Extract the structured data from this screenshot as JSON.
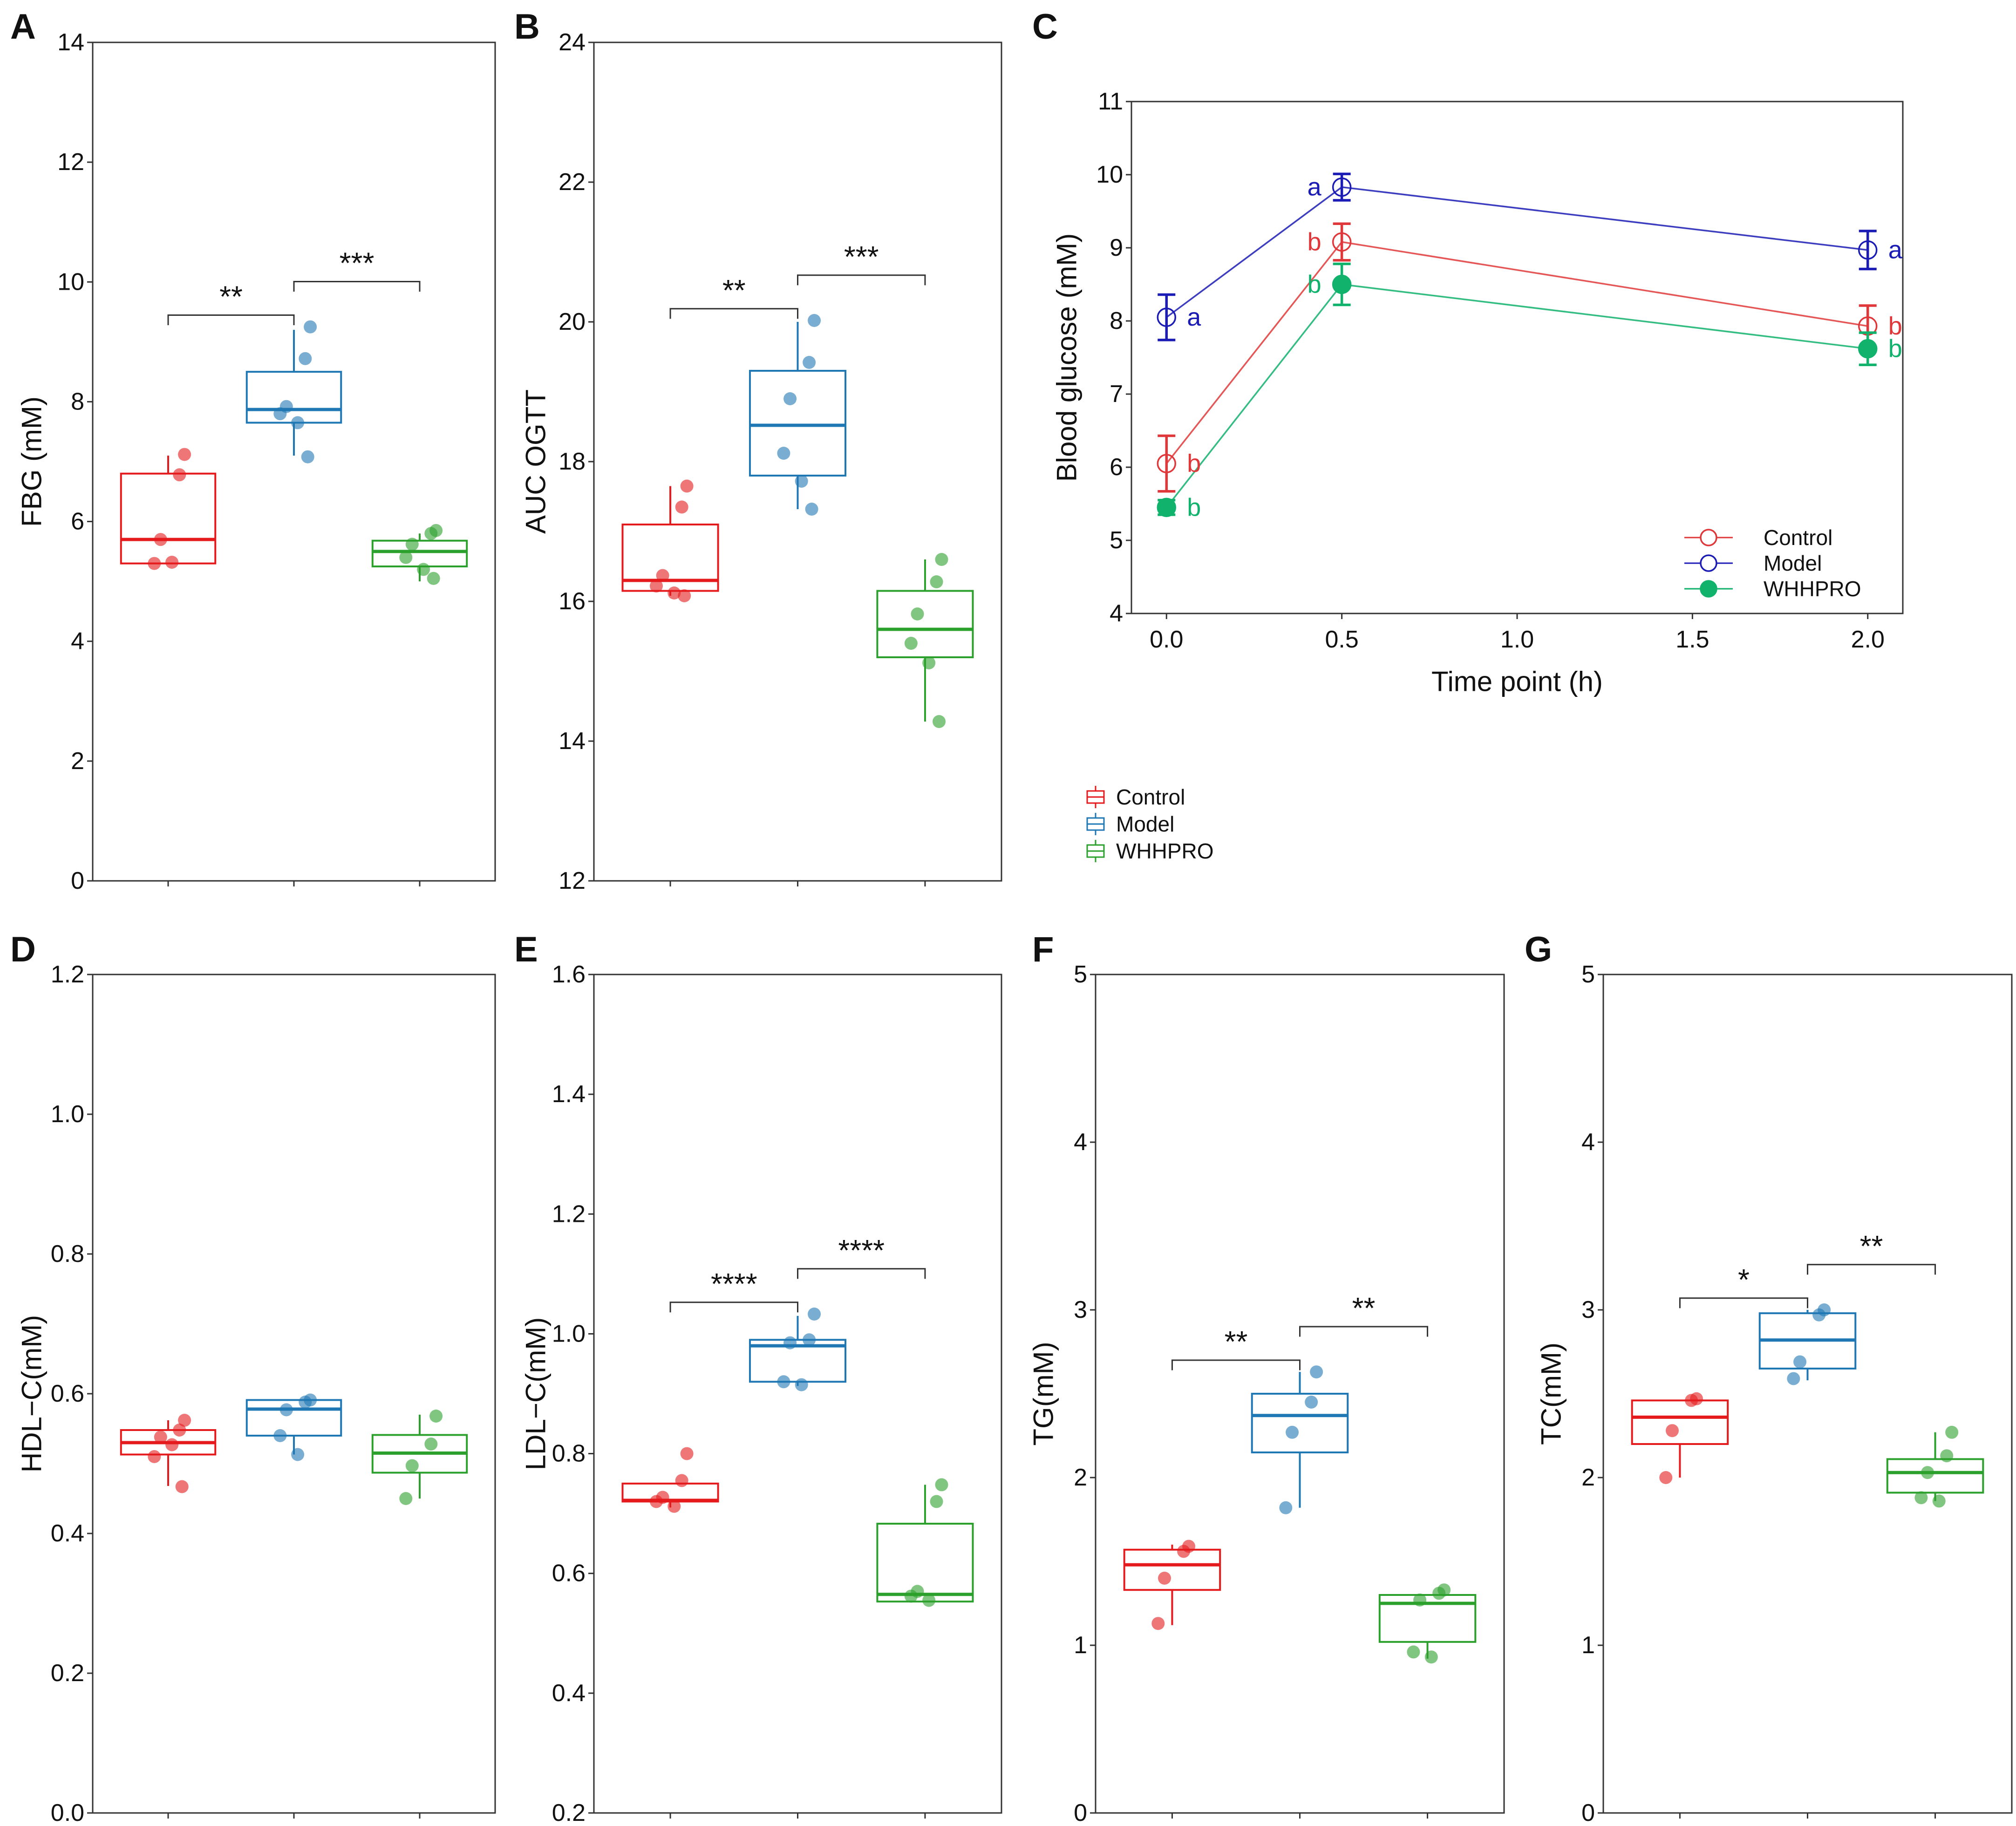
{
  "legend": {
    "items": [
      "Control",
      "Model",
      "WHHPRO"
    ]
  },
  "colors": [
    "#E41A1C",
    "#1F78B4",
    "#2CA02C"
  ],
  "chart_data": [
    {
      "panel": "A",
      "type": "box",
      "ylabel": "FBG (mM)",
      "ylim": [
        0,
        14
      ],
      "yticks": [
        "0",
        "2",
        "4",
        "6",
        "8",
        "10",
        "12",
        "14"
      ],
      "series": [
        {
          "q1": 5.3,
          "median": 5.7,
          "q3": 6.8,
          "whisker_low": 5.3,
          "whisker_high": 7.1,
          "points": [
            7.12,
            6.78,
            5.7,
            5.3,
            5.32
          ]
        },
        {
          "q1": 7.65,
          "median": 7.87,
          "q3": 8.5,
          "whisker_low": 7.1,
          "whisker_high": 9.2,
          "points": [
            9.25,
            8.72,
            7.92,
            7.8,
            7.65,
            7.08
          ]
        },
        {
          "q1": 5.25,
          "median": 5.5,
          "q3": 5.68,
          "whisker_low": 5.0,
          "whisker_high": 5.8,
          "points": [
            5.85,
            5.8,
            5.62,
            5.4,
            5.2,
            5.05
          ]
        }
      ],
      "comparisons": [
        {
          "groups": [
            1,
            2
          ],
          "label": "**"
        },
        {
          "groups": [
            2,
            3
          ],
          "label": "***"
        }
      ]
    },
    {
      "panel": "B",
      "type": "box",
      "ylabel": "AUC OGTT",
      "ylim": [
        12,
        24
      ],
      "yticks": [
        "12",
        "14",
        "16",
        "18",
        "20",
        "22",
        "24"
      ],
      "series": [
        {
          "q1": 16.15,
          "median": 16.3,
          "q3": 17.1,
          "whisker_low": 16.08,
          "whisker_high": 17.65,
          "points": [
            17.65,
            17.35,
            16.37,
            16.22,
            16.12,
            16.08
          ]
        },
        {
          "q1": 17.8,
          "median": 18.52,
          "q3": 19.3,
          "whisker_low": 17.32,
          "whisker_high": 20.0,
          "points": [
            20.02,
            19.42,
            18.9,
            18.12,
            17.72,
            17.32
          ]
        },
        {
          "q1": 15.2,
          "median": 15.6,
          "q3": 16.15,
          "whisker_low": 14.28,
          "whisker_high": 16.6,
          "points": [
            16.6,
            16.28,
            15.82,
            15.4,
            15.12,
            14.28
          ]
        }
      ],
      "comparisons": [
        {
          "groups": [
            1,
            2
          ],
          "label": "**"
        },
        {
          "groups": [
            2,
            3
          ],
          "label": "***"
        }
      ]
    },
    {
      "panel": "C",
      "type": "line",
      "xlabel": "Time point (h)",
      "ylabel": "Blood glucose (mM)",
      "xlim": [
        -0.1,
        2.1
      ],
      "ylim": [
        4,
        11
      ],
      "xticks": [
        "0.0",
        "0.5",
        "1.0",
        "1.5",
        "2.0"
      ],
      "yticks": [
        "4",
        "5",
        "6",
        "7",
        "8",
        "9",
        "10",
        "11"
      ],
      "x": [
        0,
        0.5,
        2.0
      ],
      "series": [
        {
          "name": "Control",
          "color": "#E0383A",
          "filled": false,
          "values": [
            6.05,
            9.08,
            7.93
          ],
          "error": [
            0.38,
            0.25,
            0.28
          ],
          "letters": [
            "b",
            "b",
            "b"
          ]
        },
        {
          "name": "Model",
          "color": "#1B1BB5",
          "filled": false,
          "values": [
            8.05,
            9.83,
            8.97
          ],
          "error": [
            0.31,
            0.18,
            0.26
          ],
          "letters": [
            "a",
            "a",
            "a"
          ]
        },
        {
          "name": "WHHPRO",
          "color": "#10B26C",
          "filled": true,
          "values": [
            5.45,
            8.5,
            7.62
          ],
          "error": [
            0.1,
            0.28,
            0.22
          ],
          "letters": [
            "b",
            "b",
            "b"
          ]
        }
      ]
    },
    {
      "panel": "D",
      "type": "box",
      "ylabel": "HDL−C(mM)",
      "ylim": [
        0,
        1.2
      ],
      "yticks": [
        "0.0",
        "0.2",
        "0.4",
        "0.6",
        "0.8",
        "1.0",
        "1.2"
      ],
      "series": [
        {
          "q1": 0.513,
          "median": 0.53,
          "q3": 0.548,
          "whisker_low": 0.468,
          "whisker_high": 0.562,
          "points": [
            0.562,
            0.548,
            0.538,
            0.51,
            0.527,
            0.467
          ]
        },
        {
          "q1": 0.54,
          "median": 0.578,
          "q3": 0.591,
          "whisker_low": 0.513,
          "whisker_high": 0.591,
          "points": [
            0.591,
            0.588,
            0.577,
            0.54,
            0.513
          ]
        },
        {
          "q1": 0.487,
          "median": 0.515,
          "q3": 0.541,
          "whisker_low": 0.45,
          "whisker_high": 0.57,
          "points": [
            0.568,
            0.528,
            0.497,
            0.45
          ]
        }
      ],
      "comparisons": []
    },
    {
      "panel": "E",
      "type": "box",
      "ylabel": "LDL−C(mM)",
      "ylim": [
        0.2,
        1.6
      ],
      "yticks": [
        "0.2",
        "0.4",
        "0.6",
        "0.8",
        "1.0",
        "1.2",
        "1.4",
        "1.6"
      ],
      "series": [
        {
          "q1": 0.72,
          "median": 0.722,
          "q3": 0.75,
          "whisker_low": 0.71,
          "whisker_high": 0.75,
          "points": [
            0.8,
            0.755,
            0.727,
            0.72,
            0.712
          ]
        },
        {
          "q1": 0.92,
          "median": 0.98,
          "q3": 0.99,
          "whisker_low": 0.913,
          "whisker_high": 1.03,
          "points": [
            1.033,
            0.99,
            0.985,
            0.92,
            0.915
          ]
        },
        {
          "q1": 0.553,
          "median": 0.565,
          "q3": 0.683,
          "whisker_low": 0.553,
          "whisker_high": 0.748,
          "points": [
            0.748,
            0.72,
            0.57,
            0.562,
            0.555
          ]
        }
      ],
      "comparisons": [
        {
          "groups": [
            1,
            2
          ],
          "label": "****"
        },
        {
          "groups": [
            2,
            3
          ],
          "label": "****"
        }
      ]
    },
    {
      "panel": "F",
      "type": "box",
      "ylabel": "TG(mM)",
      "ylim": [
        0,
        5
      ],
      "yticks": [
        "0",
        "1",
        "2",
        "3",
        "4",
        "5"
      ],
      "series": [
        {
          "q1": 1.33,
          "median": 1.48,
          "q3": 1.57,
          "whisker_low": 1.12,
          "whisker_high": 1.6,
          "points": [
            1.59,
            1.56,
            1.4,
            1.13
          ]
        },
        {
          "q1": 2.15,
          "median": 2.37,
          "q3": 2.5,
          "whisker_low": 1.82,
          "whisker_high": 2.63,
          "points": [
            2.63,
            2.45,
            2.27,
            1.82
          ]
        },
        {
          "q1": 1.02,
          "median": 1.25,
          "q3": 1.3,
          "whisker_low": 0.92,
          "whisker_high": 1.3,
          "points": [
            1.33,
            1.31,
            1.27,
            0.96,
            0.93
          ]
        }
      ],
      "comparisons": [
        {
          "groups": [
            1,
            2
          ],
          "label": "**"
        },
        {
          "groups": [
            2,
            3
          ],
          "label": "**"
        }
      ]
    },
    {
      "panel": "G",
      "type": "box",
      "ylabel": "TC(mM)",
      "ylim": [
        0,
        5
      ],
      "yticks": [
        "0",
        "1",
        "2",
        "3",
        "4",
        "5"
      ],
      "series": [
        {
          "q1": 2.2,
          "median": 2.36,
          "q3": 2.46,
          "whisker_low": 2.0,
          "whisker_high": 2.46,
          "points": [
            2.47,
            2.46,
            2.28,
            2.0
          ]
        },
        {
          "q1": 2.65,
          "median": 2.82,
          "q3": 2.98,
          "whisker_low": 2.58,
          "whisker_high": 3.0,
          "points": [
            3.0,
            2.97,
            2.69,
            2.59
          ]
        },
        {
          "q1": 1.91,
          "median": 2.03,
          "q3": 2.11,
          "whisker_low": 1.86,
          "whisker_high": 2.27,
          "points": [
            2.27,
            2.13,
            2.03,
            1.88,
            1.86
          ]
        }
      ],
      "comparisons": [
        {
          "groups": [
            1,
            2
          ],
          "label": "*"
        },
        {
          "groups": [
            2,
            3
          ],
          "label": "**"
        }
      ]
    }
  ]
}
